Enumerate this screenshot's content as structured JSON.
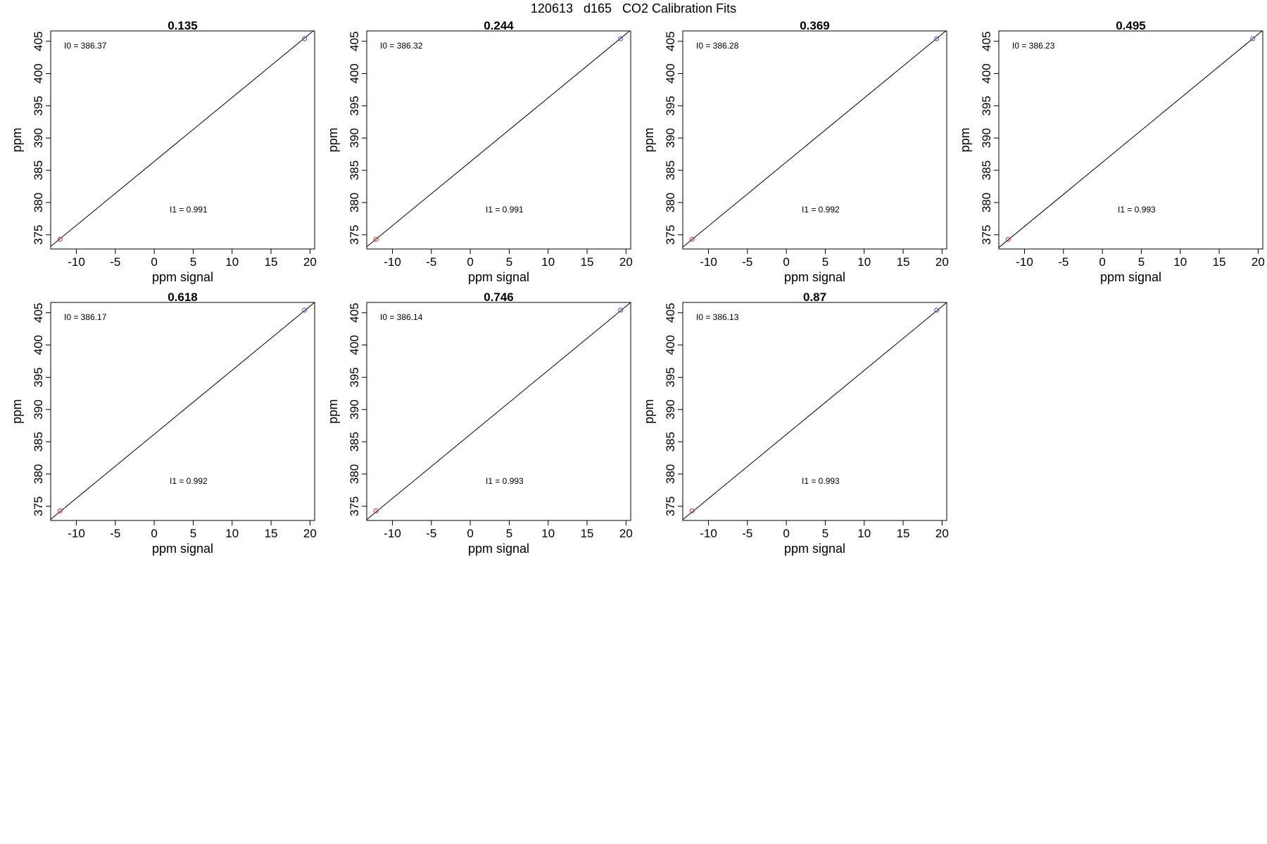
{
  "page": {
    "title": "120613   d165   CO2 Calibration Fits"
  },
  "colors": {
    "fit_line": "#000000",
    "point_low": "#e0302a",
    "point_high": "#6a3de0",
    "frame": "#000000"
  },
  "chart_data": [
    {
      "type": "scatter",
      "title": "0.135",
      "xlabel": "ppm signal",
      "ylabel": "ppm",
      "xlim": [
        -13.3,
        20.6
      ],
      "ylim": [
        372.8,
        406.6
      ],
      "xticks": [
        -10,
        -5,
        0,
        5,
        10,
        15,
        20
      ],
      "yticks": [
        375,
        380,
        385,
        390,
        395,
        400,
        405
      ],
      "grid": false,
      "points": [
        {
          "x": -12.1,
          "y": 374.3,
          "color": "#e0302a"
        },
        {
          "x": 19.3,
          "y": 405.4,
          "color": "#6a3de0"
        }
      ],
      "fit": {
        "intercept": 386.37,
        "slope": 0.991
      },
      "annotations": [
        {
          "label": "I0 = ",
          "value": "386.37"
        },
        {
          "label": "I1 = ",
          "value": "0.991"
        }
      ]
    },
    {
      "type": "scatter",
      "title": "0.244",
      "xlabel": "ppm signal",
      "ylabel": "ppm",
      "xlim": [
        -13.3,
        20.6
      ],
      "ylim": [
        372.8,
        406.6
      ],
      "xticks": [
        -10,
        -5,
        0,
        5,
        10,
        15,
        20
      ],
      "yticks": [
        375,
        380,
        385,
        390,
        395,
        400,
        405
      ],
      "grid": false,
      "points": [
        {
          "x": -12.1,
          "y": 374.3,
          "color": "#e0302a"
        },
        {
          "x": 19.3,
          "y": 405.4,
          "color": "#6a3de0"
        }
      ],
      "fit": {
        "intercept": 386.32,
        "slope": 0.991
      },
      "annotations": [
        {
          "label": "I0 = ",
          "value": "386.32"
        },
        {
          "label": "I1 = ",
          "value": "0.991"
        }
      ]
    },
    {
      "type": "scatter",
      "title": "0.369",
      "xlabel": "ppm signal",
      "ylabel": "ppm",
      "xlim": [
        -13.3,
        20.6
      ],
      "ylim": [
        372.8,
        406.6
      ],
      "xticks": [
        -10,
        -5,
        0,
        5,
        10,
        15,
        20
      ],
      "yticks": [
        375,
        380,
        385,
        390,
        395,
        400,
        405
      ],
      "grid": false,
      "points": [
        {
          "x": -12.1,
          "y": 374.3,
          "color": "#e0302a"
        },
        {
          "x": 19.3,
          "y": 405.4,
          "color": "#6a3de0"
        }
      ],
      "fit": {
        "intercept": 386.28,
        "slope": 0.992
      },
      "annotations": [
        {
          "label": "I0 = ",
          "value": "386.28"
        },
        {
          "label": "I1 = ",
          "value": "0.992"
        }
      ]
    },
    {
      "type": "scatter",
      "title": "0.495",
      "xlabel": "ppm signal",
      "ylabel": "ppm",
      "xlim": [
        -13.3,
        20.6
      ],
      "ylim": [
        372.8,
        406.6
      ],
      "xticks": [
        -10,
        -5,
        0,
        5,
        10,
        15,
        20
      ],
      "yticks": [
        375,
        380,
        385,
        390,
        395,
        400,
        405
      ],
      "grid": false,
      "points": [
        {
          "x": -12.1,
          "y": 374.3,
          "color": "#e0302a"
        },
        {
          "x": 19.3,
          "y": 405.4,
          "color": "#6a3de0"
        }
      ],
      "fit": {
        "intercept": 386.23,
        "slope": 0.993
      },
      "annotations": [
        {
          "label": "I0 = ",
          "value": "386.23"
        },
        {
          "label": "I1 = ",
          "value": "0.993"
        }
      ]
    },
    {
      "type": "scatter",
      "title": "0.618",
      "xlabel": "ppm signal",
      "ylabel": "ppm",
      "xlim": [
        -13.3,
        20.6
      ],
      "ylim": [
        372.8,
        406.6
      ],
      "xticks": [
        -10,
        -5,
        0,
        5,
        10,
        15,
        20
      ],
      "yticks": [
        375,
        380,
        385,
        390,
        395,
        400,
        405
      ],
      "grid": false,
      "points": [
        {
          "x": -12.1,
          "y": 374.3,
          "color": "#e0302a"
        },
        {
          "x": 19.3,
          "y": 405.4,
          "color": "#6a3de0"
        }
      ],
      "fit": {
        "intercept": 386.17,
        "slope": 0.992
      },
      "annotations": [
        {
          "label": "I0 = ",
          "value": "386.17"
        },
        {
          "label": "I1 = ",
          "value": "0.992"
        }
      ]
    },
    {
      "type": "scatter",
      "title": "0.746",
      "xlabel": "ppm signal",
      "ylabel": "ppm",
      "xlim": [
        -13.3,
        20.6
      ],
      "ylim": [
        372.8,
        406.6
      ],
      "xticks": [
        -10,
        -5,
        0,
        5,
        10,
        15,
        20
      ],
      "yticks": [
        375,
        380,
        385,
        390,
        395,
        400,
        405
      ],
      "grid": false,
      "points": [
        {
          "x": -12.1,
          "y": 374.3,
          "color": "#e0302a"
        },
        {
          "x": 19.3,
          "y": 405.4,
          "color": "#6a3de0"
        }
      ],
      "fit": {
        "intercept": 386.14,
        "slope": 0.993
      },
      "annotations": [
        {
          "label": "I0 = ",
          "value": "386.14"
        },
        {
          "label": "I1 = ",
          "value": "0.993"
        }
      ]
    },
    {
      "type": "scatter",
      "title": "0.87",
      "xlabel": "ppm signal",
      "ylabel": "ppm",
      "xlim": [
        -13.3,
        20.6
      ],
      "ylim": [
        372.8,
        406.6
      ],
      "xticks": [
        -10,
        -5,
        0,
        5,
        10,
        15,
        20
      ],
      "yticks": [
        375,
        380,
        385,
        390,
        395,
        400,
        405
      ],
      "grid": false,
      "points": [
        {
          "x": -12.1,
          "y": 374.3,
          "color": "#e0302a"
        },
        {
          "x": 19.3,
          "y": 405.4,
          "color": "#6a3de0"
        }
      ],
      "fit": {
        "intercept": 386.13,
        "slope": 0.993
      },
      "annotations": [
        {
          "label": "I0 = ",
          "value": "386.13"
        },
        {
          "label": "I1 = ",
          "value": "0.993"
        }
      ]
    }
  ]
}
